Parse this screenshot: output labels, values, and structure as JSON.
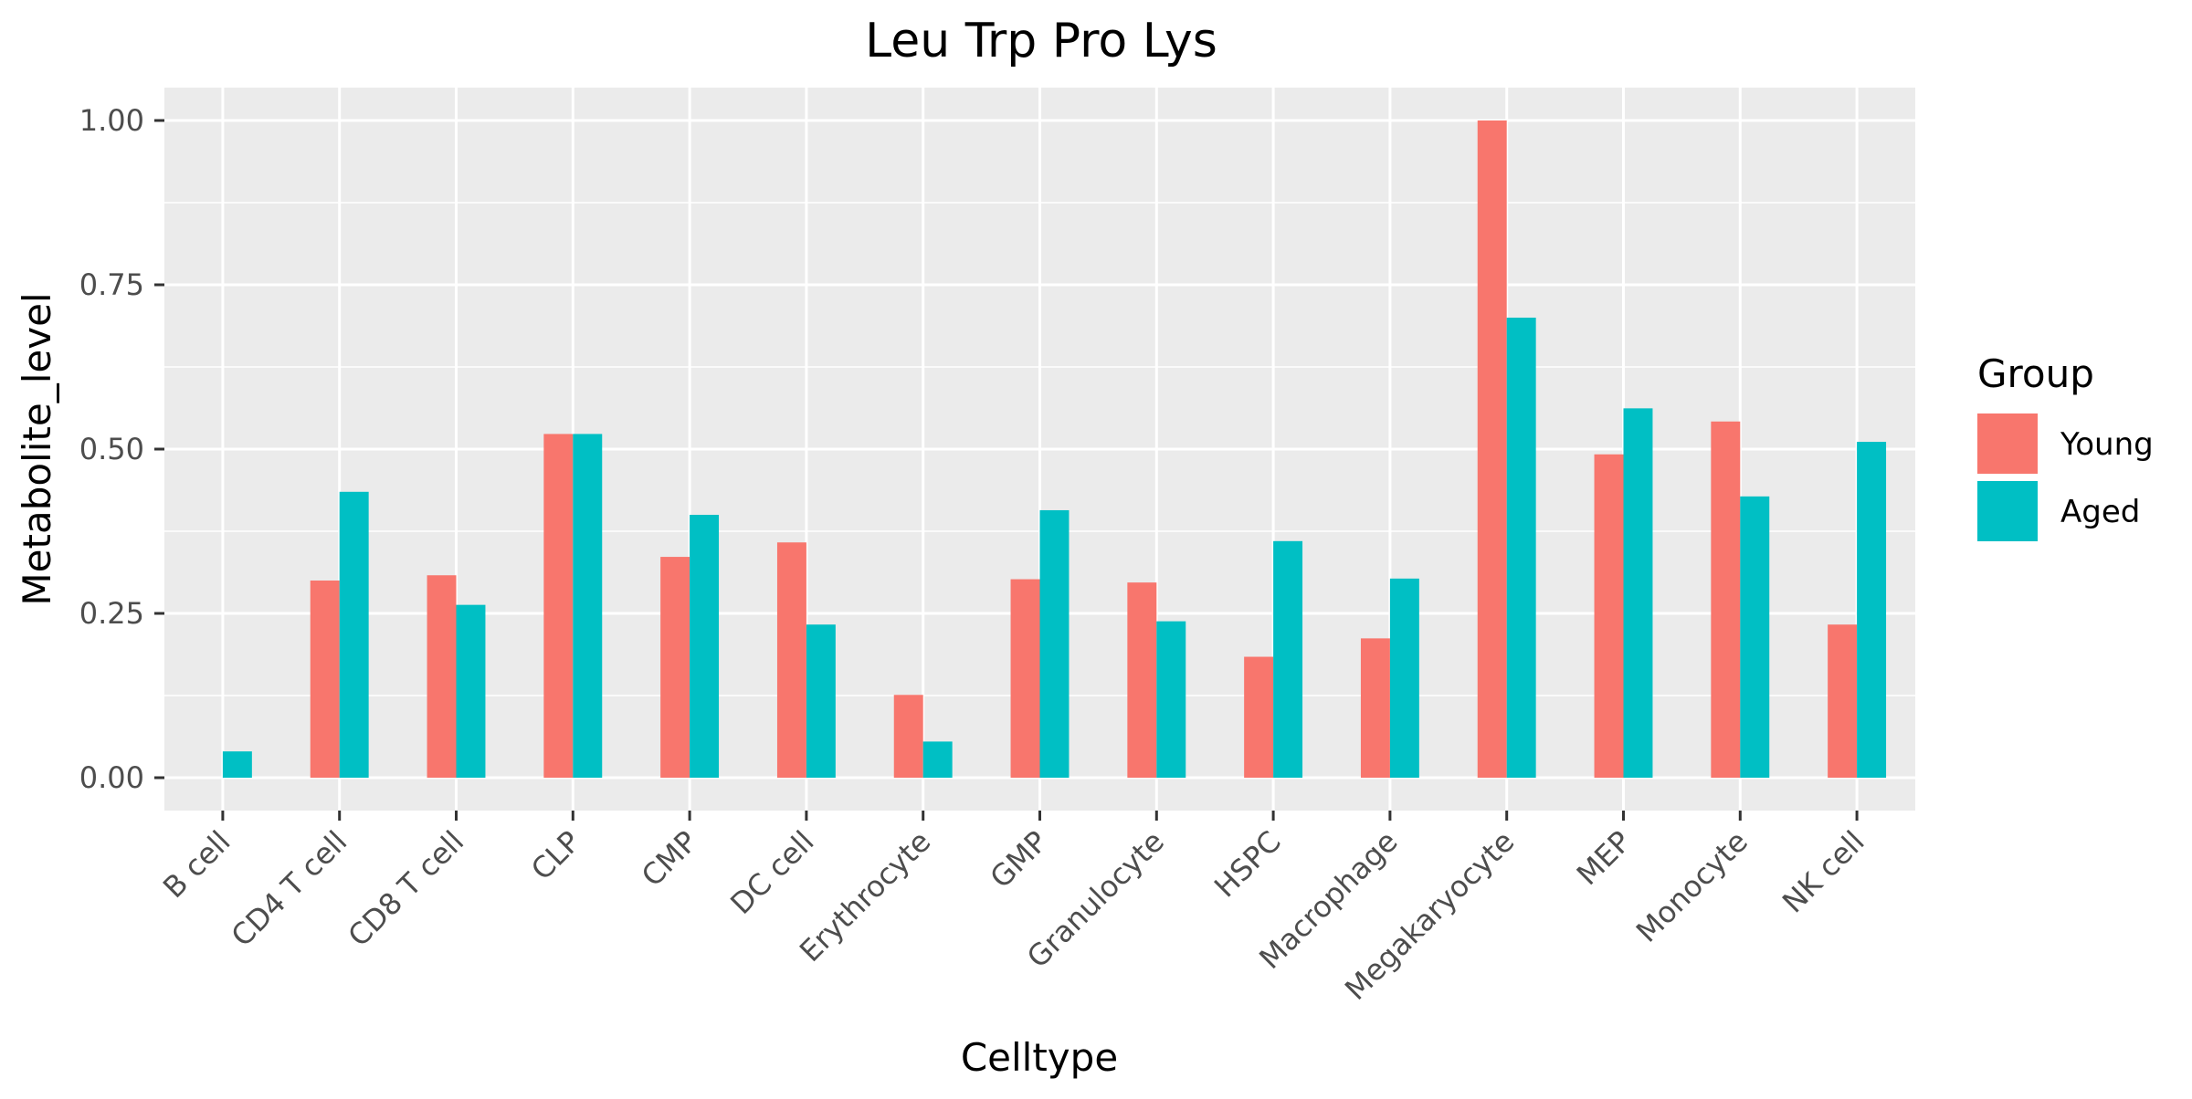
{
  "chart_data": {
    "type": "bar",
    "title": "Leu Trp Pro Lys",
    "xlabel": "Celltype",
    "ylabel": "Metabolite_level",
    "categories": [
      "B cell",
      "CD4 T cell",
      "CD8 T cell",
      "CLP",
      "CMP",
      "DC cell",
      "Erythrocyte",
      "GMP",
      "Granulocyte",
      "HSPC",
      "Macrophage",
      "Megakaryocyte",
      "MEP",
      "Monocyte",
      "NK cell"
    ],
    "series": [
      {
        "name": "Young",
        "color": "#F8766D",
        "values": [
          null,
          0.3,
          0.308,
          0.523,
          0.336,
          0.358,
          0.126,
          0.302,
          0.297,
          0.184,
          0.212,
          1.0,
          0.492,
          0.542,
          0.233
        ]
      },
      {
        "name": "Aged",
        "color": "#00BFC4",
        "values": [
          0.04,
          0.435,
          0.263,
          0.523,
          0.4,
          0.233,
          0.055,
          0.407,
          0.238,
          0.36,
          0.303,
          0.7,
          0.562,
          0.428,
          0.511
        ]
      }
    ],
    "ylim": [
      -0.05,
      1.05
    ],
    "yticks": [
      0.0,
      0.25,
      0.5,
      0.75,
      1.0
    ],
    "ytick_labels": [
      "0.00",
      "0.25",
      "0.50",
      "0.75",
      "1.00"
    ],
    "legend": {
      "title": "Group",
      "position": "right"
    },
    "grid": true,
    "panel_background": "#EBEBEB"
  }
}
